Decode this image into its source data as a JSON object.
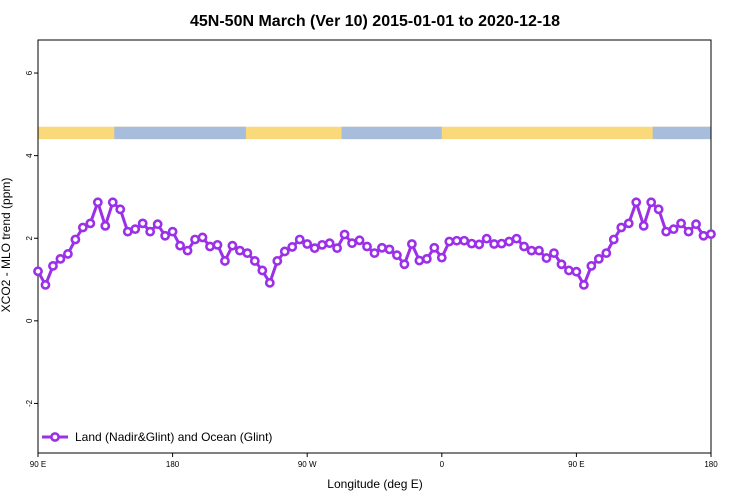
{
  "chart_data": {
    "type": "line",
    "title": "45N-50N March (Ver 10)   2015-01-01 to 2020-12-18",
    "xlabel": "Longitude (deg E)",
    "ylabel": "XCO2 - MLO trend (ppm)",
    "xlim": [
      90,
      540
    ],
    "ylim": [
      -3.2,
      6.8
    ],
    "x_ticks": [
      {
        "value": 90,
        "label": "90 E"
      },
      {
        "value": 180,
        "label": "180"
      },
      {
        "value": 270,
        "label": "90 W"
      },
      {
        "value": 360,
        "label": "0"
      },
      {
        "value": 450,
        "label": "90 E"
      },
      {
        "value": 540,
        "label": "180"
      }
    ],
    "y_ticks": [
      {
        "value": -2,
        "label": "-2"
      },
      {
        "value": 0,
        "label": "0"
      },
      {
        "value": 2,
        "label": "2"
      },
      {
        "value": 4,
        "label": "4"
      },
      {
        "value": 6,
        "label": "6"
      }
    ],
    "grid": false,
    "legend_position": "bottom-left",
    "map_strip": {
      "y_range": [
        4.4,
        4.7
      ],
      "land_color": "#f9d97a",
      "ocean_color": "#a8bcdc",
      "ocean_segments": [
        [
          141,
          229
        ],
        [
          293,
          360
        ],
        [
          501,
          540
        ]
      ]
    },
    "series": [
      {
        "name": "Land (Nadir&Glint) and Ocean (Glint)",
        "color": "#9b30e8",
        "x": [
          90,
          95,
          100,
          105,
          110,
          115,
          120,
          125,
          130,
          135,
          140,
          145,
          150,
          155,
          160,
          165,
          170,
          175,
          180,
          185,
          190,
          195,
          200,
          205,
          210,
          215,
          220,
          225,
          230,
          235,
          240,
          245,
          250,
          255,
          260,
          265,
          270,
          275,
          280,
          285,
          290,
          295,
          300,
          305,
          310,
          315,
          320,
          325,
          330,
          335,
          340,
          345,
          350,
          355,
          360,
          365,
          370,
          375,
          380,
          385,
          390,
          395,
          400,
          405,
          410,
          415,
          420,
          425,
          430,
          435,
          440,
          445,
          450,
          455,
          460,
          465,
          470,
          475,
          480,
          485,
          490,
          495,
          500,
          505,
          510,
          515,
          520,
          525,
          530,
          535,
          540
        ],
        "y": [
          1.2,
          0.87,
          1.33,
          1.5,
          1.62,
          1.97,
          2.26,
          2.36,
          2.87,
          2.3,
          2.87,
          2.7,
          2.16,
          2.22,
          2.36,
          2.16,
          2.34,
          2.06,
          2.16,
          1.82,
          1.7,
          1.97,
          2.02,
          1.8,
          1.84,
          1.45,
          1.82,
          1.7,
          1.64,
          1.45,
          1.22,
          0.92,
          1.45,
          1.68,
          1.79,
          1.97,
          1.86,
          1.76,
          1.84,
          1.88,
          1.76,
          2.09,
          1.88,
          1.95,
          1.8,
          1.64,
          1.77,
          1.73,
          1.59,
          1.37,
          1.86,
          1.46,
          1.5,
          1.77,
          1.53,
          1.92,
          1.94,
          1.94,
          1.87,
          1.85,
          1.99,
          1.86,
          1.87,
          1.92,
          1.99,
          1.8,
          1.7,
          1.7,
          1.52,
          1.64,
          1.37,
          1.22,
          1.19,
          0.87,
          1.33,
          1.5,
          1.64,
          1.97,
          2.26,
          2.36,
          2.87,
          2.3,
          2.87,
          2.7,
          2.16,
          2.22,
          2.36,
          2.16,
          2.34,
          2.06,
          2.1
        ]
      }
    ]
  }
}
